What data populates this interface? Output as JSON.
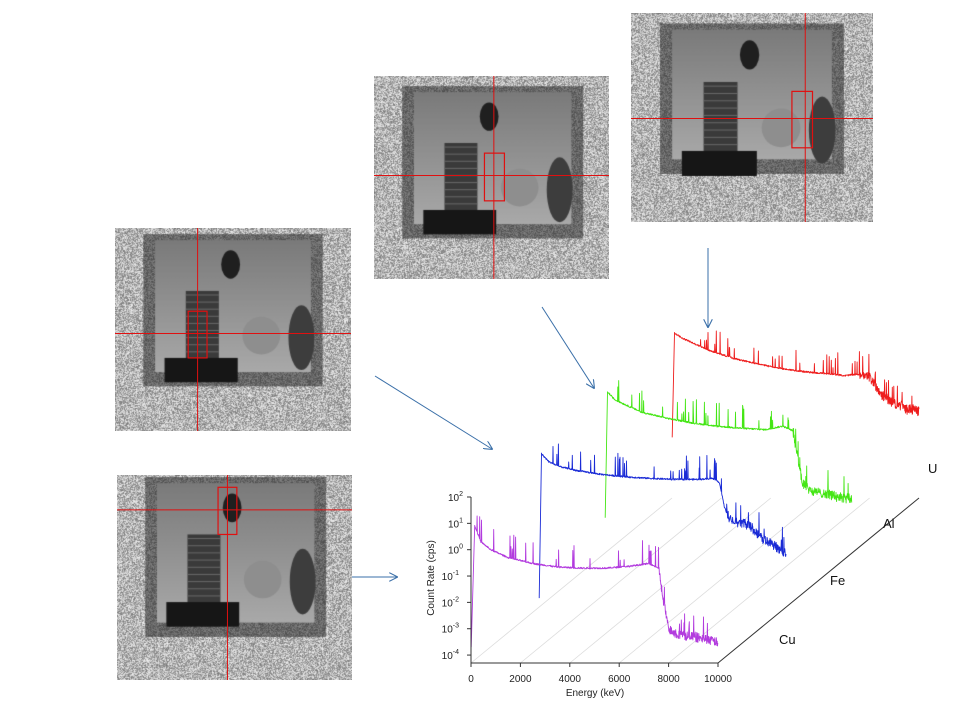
{
  "chart_data": {
    "type": "line",
    "chart_style": "3d-waterfall",
    "xlabel": "Energy (keV)",
    "ylabel": "Count Rate (cps)",
    "xlim": [
      0,
      10000
    ],
    "xticks": [
      0,
      2000,
      4000,
      6000,
      8000,
      10000
    ],
    "yscale": "log",
    "ylim": [
      5e-05,
      100
    ],
    "yticks": [
      {
        "exp": "2",
        "value": 100
      },
      {
        "exp": "1",
        "value": 10
      },
      {
        "exp": "0",
        "value": 1
      },
      {
        "exp": "-1",
        "value": 0.1
      },
      {
        "exp": "-2",
        "value": 0.01
      },
      {
        "exp": "-3",
        "value": 0.001
      },
      {
        "exp": "-4",
        "value": 0.0001
      }
    ],
    "ytick_base": "10",
    "depth_axis_labels": [
      "Cu",
      "Fe",
      "Al",
      "U"
    ],
    "series": [
      {
        "name": "Cu",
        "color": "#b23bde",
        "x": [
          10,
          150,
          400,
          800,
          1500,
          2500,
          3500,
          4500,
          5500,
          6500,
          7200,
          7600,
          7800,
          8000,
          8400,
          9000,
          9500,
          10000
        ],
        "y": [
          0.0002,
          8,
          2,
          1.0,
          0.5,
          0.3,
          0.22,
          0.2,
          0.2,
          0.24,
          0.3,
          0.2,
          0.01,
          0.001,
          0.0006,
          0.0005,
          0.0004,
          0.0003
        ]
      },
      {
        "name": "Fe",
        "color": "#1a2bd6",
        "x": [
          10,
          100,
          400,
          800,
          1500,
          2500,
          3500,
          4500,
          5500,
          6500,
          7000,
          7300,
          7500,
          7700,
          8000,
          8500,
          9000,
          9500,
          10000
        ],
        "y": [
          0.0001,
          30,
          15,
          10,
          7,
          5,
          4,
          3.5,
          3.2,
          3.2,
          3.5,
          2.5,
          0.3,
          0.1,
          0.08,
          0.06,
          0.02,
          0.01,
          0.005
        ]
      },
      {
        "name": "Al",
        "color": "#44e614",
        "x": [
          10,
          100,
          400,
          800,
          1500,
          2500,
          3500,
          4500,
          5500,
          6500,
          7200,
          7600,
          7800,
          8000,
          8400,
          9000,
          9500,
          10000
        ],
        "y": [
          0.001,
          60,
          30,
          20,
          10,
          6,
          4,
          3,
          2.5,
          2.2,
          3.0,
          2.0,
          0.2,
          0.02,
          0.01,
          0.008,
          0.006,
          0.005
        ]
      },
      {
        "name": "U",
        "color": "#ee1c1c",
        "x": [
          10,
          100,
          400,
          800,
          1500,
          2500,
          3500,
          4500,
          5500,
          6500,
          7000,
          7500,
          8000,
          8500,
          9000,
          9500,
          10000
        ],
        "y": [
          0.01,
          90,
          60,
          40,
          20,
          10,
          6,
          4,
          3.0,
          2.5,
          2.2,
          2.5,
          2.0,
          0.4,
          0.2,
          0.12,
          0.1
        ]
      }
    ]
  },
  "panels": [
    {
      "name": "xray-panel-u"
    },
    {
      "name": "xray-panel-al"
    },
    {
      "name": "xray-panel-fe"
    },
    {
      "name": "xray-panel-cu"
    }
  ],
  "colors": {
    "crosshair": "#e01010",
    "arrow": "#3a6fa8"
  }
}
